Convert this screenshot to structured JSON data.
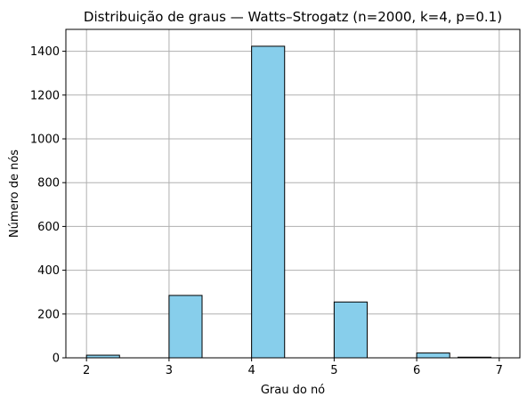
{
  "chart_data": {
    "type": "bar",
    "title": "Distribuição de graus — Watts–Strogatz (n=2000, k=4, p=0.1)",
    "xlabel": "Grau do nó",
    "ylabel": "Número de nós",
    "xlim": [
      1.75,
      7.25
    ],
    "ylim": [
      0,
      1500
    ],
    "xticks": [
      2,
      3,
      4,
      5,
      6,
      7
    ],
    "yticks": [
      0,
      200,
      400,
      600,
      800,
      1000,
      1200,
      1400
    ],
    "grid": true,
    "bar_color": "#87CEEB",
    "edge_color": "#000000",
    "bins": [
      {
        "x0": 2.0,
        "x1": 2.4,
        "value": 12
      },
      {
        "x0": 2.5,
        "x1": 2.9,
        "value": 0
      },
      {
        "x0": 3.0,
        "x1": 3.4,
        "value": 285
      },
      {
        "x0": 3.5,
        "x1": 3.9,
        "value": 0
      },
      {
        "x0": 4.0,
        "x1": 4.4,
        "value": 1423
      },
      {
        "x0": 4.5,
        "x1": 4.9,
        "value": 0
      },
      {
        "x0": 5.0,
        "x1": 5.4,
        "value": 255
      },
      {
        "x0": 5.5,
        "x1": 5.9,
        "value": 0
      },
      {
        "x0": 6.0,
        "x1": 6.4,
        "value": 22
      },
      {
        "x0": 6.5,
        "x1": 6.9,
        "value": 3
      }
    ]
  }
}
